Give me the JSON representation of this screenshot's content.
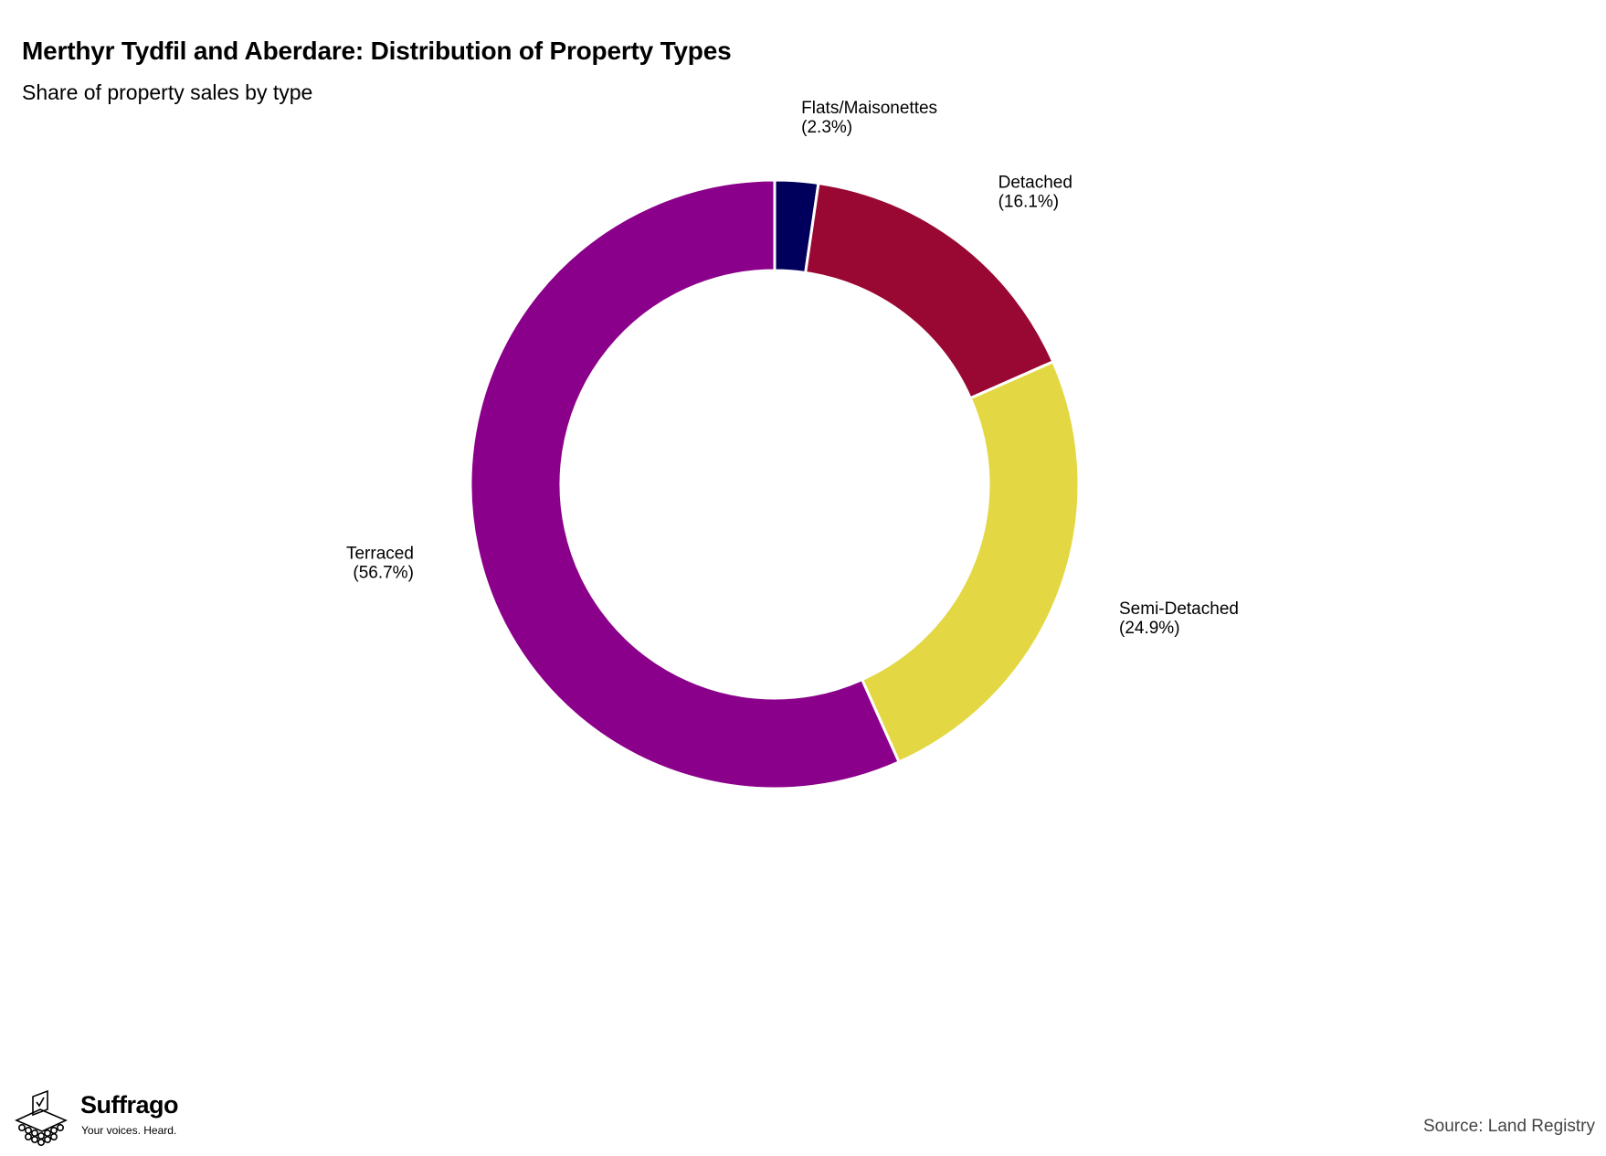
{
  "title": "Merthyr Tydfil and Aberdare: Distribution of Property Types",
  "subtitle": "Share of property sales by type",
  "source": "Source: Land Registry",
  "logo": {
    "name": "Suffrago",
    "tagline": "Your voices. Heard."
  },
  "chart_data": {
    "type": "pie",
    "donut": true,
    "title": "Merthyr Tydfil and Aberdare: Distribution of Property Types",
    "subtitle": "Share of property sales by type",
    "categories": [
      "Flats/Maisonettes",
      "Detached",
      "Semi-Detached",
      "Terraced"
    ],
    "values": [
      2.3,
      16.1,
      24.9,
      56.7
    ],
    "labels": [
      "(2.3%)",
      "(16.1%)",
      "(24.9%)",
      "(56.7%)"
    ],
    "colors": [
      "#00005c",
      "#990833",
      "#e3d843",
      "#8b008b"
    ],
    "legend": "none"
  }
}
